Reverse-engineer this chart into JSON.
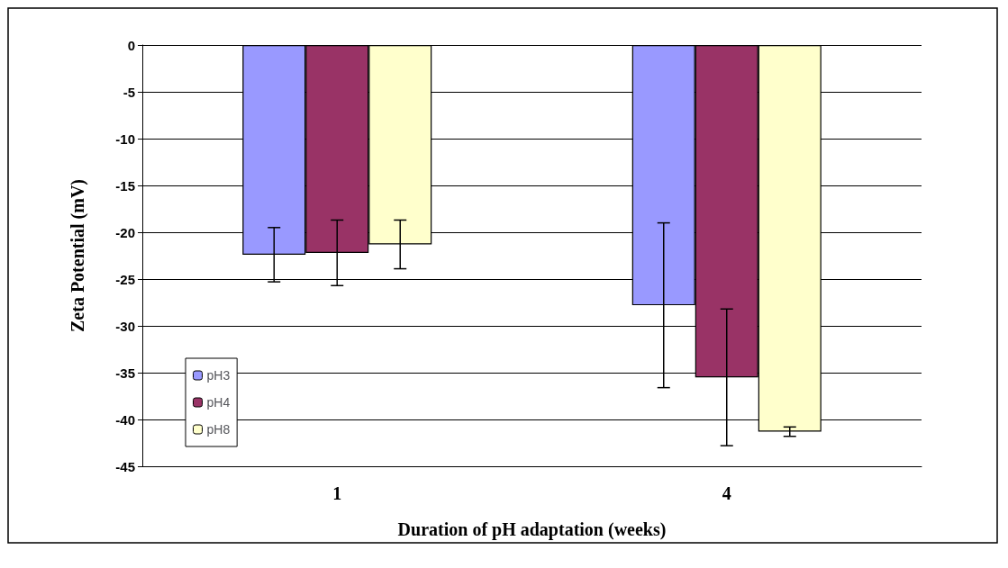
{
  "chart_data": {
    "type": "bar",
    "xlabel": "Duration of pH adaptation (weeks)",
    "ylabel": "Zeta Potential (mV)",
    "categories": [
      "1",
      "4"
    ],
    "series": [
      {
        "name": "pH3",
        "color": "#9999ff",
        "values": [
          -22.4,
          -27.8
        ],
        "errors": [
          2.9,
          8.8
        ]
      },
      {
        "name": "pH4",
        "color": "#993366",
        "values": [
          -22.2,
          -35.5
        ],
        "errors": [
          3.5,
          7.3
        ]
      },
      {
        "name": "pH8",
        "color": "#ffffcc",
        "values": [
          -21.3,
          -41.3
        ],
        "errors": [
          2.6,
          0.5
        ]
      }
    ],
    "ylim": [
      -45,
      0
    ],
    "yticks": [
      -45,
      -40,
      -35,
      -30,
      -25,
      -20,
      -15,
      -10,
      -5,
      0
    ],
    "grid": "y",
    "legend": "left"
  }
}
